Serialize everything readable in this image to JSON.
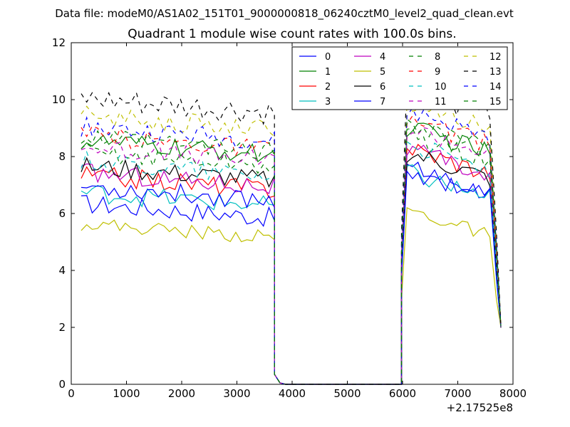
{
  "suptitle": "Data file: modeM0/AS1A02_151T01_9000000818_06240cztM0_level2_quad_clean.evt",
  "chart_data": {
    "type": "line",
    "title": "Quadrant 1 module wise count rates with 100.0s bins.",
    "xlabel": "",
    "ylabel": "",
    "x_offset_label": "+2.17525e8",
    "xlim": [
      0,
      8000
    ],
    "ylim": [
      0,
      12
    ],
    "xticks": [
      0,
      1000,
      2000,
      3000,
      4000,
      5000,
      6000,
      7000,
      8000
    ],
    "yticks": [
      0,
      2,
      4,
      6,
      8,
      10,
      12
    ],
    "grid": false,
    "legend_position": "top-right",
    "segments": [
      {
        "x_start": 180,
        "x_end": 3680,
        "step": 100
      },
      {
        "x_start": 5980,
        "x_end": 7780,
        "step": 100
      }
    ],
    "gap": {
      "x": [
        3680,
        3780,
        3880,
        5880,
        5980
      ],
      "y": [
        0.35,
        0.05,
        0.0,
        0.0,
        0.0
      ]
    },
    "series": [
      {
        "name": "0",
        "color": "#0000ff",
        "dash": "solid",
        "base": 6.0,
        "seg2": 6.9,
        "amp": 0.35
      },
      {
        "name": "1",
        "color": "#008000",
        "dash": "solid",
        "base": 8.2,
        "seg2": 8.3,
        "amp": 0.35
      },
      {
        "name": "2",
        "color": "#ff0000",
        "dash": "solid",
        "base": 7.0,
        "seg2": 7.6,
        "amp": 0.35
      },
      {
        "name": "3",
        "color": "#00bfbf",
        "dash": "solid",
        "base": 6.4,
        "seg2": 6.7,
        "amp": 0.35
      },
      {
        "name": "4",
        "color": "#bf00bf",
        "dash": "solid",
        "base": 7.1,
        "seg2": 7.5,
        "amp": 0.35
      },
      {
        "name": "5",
        "color": "#bfbf00",
        "dash": "solid",
        "base": 5.3,
        "seg2": 5.4,
        "amp": 0.25
      },
      {
        "name": "6",
        "color": "#000000",
        "dash": "solid",
        "base": 7.3,
        "seg2": 7.4,
        "amp": 0.35
      },
      {
        "name": "7",
        "color": "#0000ff",
        "dash": "solid",
        "base": 6.6,
        "seg2": 6.8,
        "amp": 0.35
      },
      {
        "name": "8",
        "color": "#008000",
        "dash": "dashed",
        "base": 7.8,
        "seg2": 8.0,
        "amp": 0.35
      },
      {
        "name": "9",
        "color": "#ff0000",
        "dash": "dashed",
        "base": 8.4,
        "seg2": 8.6,
        "amp": 0.35
      },
      {
        "name": "10",
        "color": "#00bfbf",
        "dash": "dashed",
        "base": 7.5,
        "seg2": 7.7,
        "amp": 0.35
      },
      {
        "name": "11",
        "color": "#bf00bf",
        "dash": "dashed",
        "base": 8.0,
        "seg2": 8.3,
        "amp": 0.35
      },
      {
        "name": "12",
        "color": "#bfbf00",
        "dash": "dashed",
        "base": 9.1,
        "seg2": 9.2,
        "amp": 0.35
      },
      {
        "name": "13",
        "color": "#000000",
        "dash": "dashed",
        "base": 9.6,
        "seg2": 9.7,
        "amp": 0.45
      },
      {
        "name": "14",
        "color": "#0000ff",
        "dash": "dashed",
        "base": 8.7,
        "seg2": 8.9,
        "amp": 0.35
      },
      {
        "name": "15",
        "color": "#008000",
        "dash": "dashed",
        "base": 8.3,
        "seg2": 8.5,
        "amp": 0.35
      }
    ]
  }
}
